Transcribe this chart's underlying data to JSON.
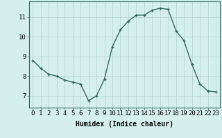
{
  "x": [
    0,
    1,
    2,
    3,
    4,
    5,
    6,
    7,
    8,
    9,
    10,
    11,
    12,
    13,
    14,
    15,
    16,
    17,
    18,
    19,
    20,
    21,
    22,
    23
  ],
  "y": [
    8.8,
    8.4,
    8.1,
    8.0,
    7.8,
    7.7,
    7.6,
    6.75,
    7.0,
    7.85,
    9.5,
    10.35,
    10.8,
    11.1,
    11.1,
    11.35,
    11.45,
    11.4,
    10.3,
    9.8,
    8.6,
    7.6,
    7.25,
    7.2
  ],
  "line_color": "#2e6b5e",
  "marker": "+",
  "marker_size": 3,
  "marker_linewidth": 1.0,
  "line_width": 1.0,
  "bg_color": "#d5f0ec",
  "grid_color": "#b8d8d4",
  "xlabel": "Humidex (Indice chaleur)",
  "xlabel_fontsize": 7,
  "ylabel_ticks": [
    7,
    8,
    9,
    10,
    11
  ],
  "xtick_labels": [
    "0",
    "1",
    "2",
    "3",
    "4",
    "5",
    "6",
    "7",
    "8",
    "9",
    "10",
    "11",
    "12",
    "13",
    "14",
    "15",
    "16",
    "17",
    "18",
    "19",
    "20",
    "21",
    "22",
    "23"
  ],
  "ylim": [
    6.4,
    11.8
  ],
  "xlim": [
    -0.5,
    23.5
  ],
  "tick_fontsize": 6.5
}
